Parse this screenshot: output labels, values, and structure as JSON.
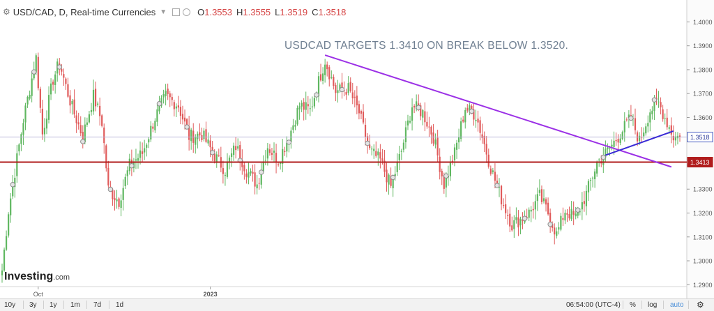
{
  "header": {
    "symbol": "USD/CAD, D, Real-time Currencies",
    "open_label": "O",
    "open_value": "1.3553",
    "high_label": "H",
    "high_value": "1.3555",
    "low_label": "L",
    "low_value": "1.3519",
    "close_label": "C",
    "close_value": "1.3518"
  },
  "annotation": "USDCAD TARGETS 1.3410 ON BREAK BELOW 1.3520.",
  "brand": "Investing",
  "brand_suffix": ".com",
  "toolbar": {
    "ranges": [
      "10y",
      "3y",
      "1y",
      "1m",
      "7d",
      "1d"
    ],
    "clock": "06:54:00 (UTC-4)",
    "percent": "%",
    "log": "log",
    "auto": "auto",
    "settings_icon": "gear-icon"
  },
  "colors": {
    "up": "#5fb760",
    "down": "#e05a5a",
    "resistance": "#9b30e6",
    "support_line": "#b01c1c",
    "uptrend": "#3a2bd6",
    "annotation": "#6f7f91"
  },
  "chart_data": {
    "type": "candlestick",
    "title": "USD/CAD, D, Real-time Currencies",
    "xlabel": "",
    "ylabel": "",
    "x_ticks": [
      "Oct",
      "2023"
    ],
    "ylim": [
      1.2895,
      1.408
    ],
    "y_ticks": [
      1.29,
      1.3,
      1.31,
      1.32,
      1.33,
      1.34,
      1.35,
      1.36,
      1.37,
      1.38,
      1.39,
      1.4
    ],
    "y_tick_labels": [
      "1.2900",
      "1.3000",
      "1.3100",
      "1.3200",
      "1.3300",
      "",
      "",
      "1.3600",
      "1.3700",
      "1.3800",
      "1.3900",
      "1.4000"
    ],
    "price_labels": [
      {
        "label": "1.3518",
        "value": 1.3518,
        "style": "current"
      },
      {
        "label": "1.3413",
        "value": 1.3413,
        "style": "support"
      }
    ],
    "horizontal_lines": [
      {
        "name": "support",
        "value": 1.3413
      },
      {
        "name": "current",
        "value": 1.3518
      }
    ],
    "trendlines": [
      {
        "name": "resistance",
        "from": {
          "bar": 152,
          "value": 1.3861
        },
        "to": {
          "bar": 315,
          "value": 1.3393
        }
      },
      {
        "name": "uptrend",
        "from": {
          "bar": 284,
          "value": 1.3442
        },
        "to": {
          "bar": 316,
          "value": 1.3543
        }
      }
    ],
    "bar_count": 320,
    "anchors": [
      [
        0,
        1.296
      ],
      [
        3,
        1.321
      ],
      [
        10,
        1.359
      ],
      [
        16,
        1.385
      ],
      [
        19,
        1.353
      ],
      [
        24,
        1.376
      ],
      [
        27,
        1.383
      ],
      [
        30,
        1.373
      ],
      [
        33,
        1.364
      ],
      [
        38,
        1.352
      ],
      [
        43,
        1.369
      ],
      [
        47,
        1.358
      ],
      [
        50,
        1.33
      ],
      [
        55,
        1.325
      ],
      [
        60,
        1.34
      ],
      [
        66,
        1.345
      ],
      [
        72,
        1.36
      ],
      [
        77,
        1.369
      ],
      [
        83,
        1.365
      ],
      [
        88,
        1.352
      ],
      [
        94,
        1.353
      ],
      [
        100,
        1.344
      ],
      [
        105,
        1.338
      ],
      [
        110,
        1.348
      ],
      [
        115,
        1.338
      ],
      [
        120,
        1.332
      ],
      [
        125,
        1.348
      ],
      [
        130,
        1.342
      ],
      [
        135,
        1.352
      ],
      [
        140,
        1.365
      ],
      [
        145,
        1.363
      ],
      [
        152,
        1.384
      ],
      [
        157,
        1.371
      ],
      [
        163,
        1.372
      ],
      [
        168,
        1.362
      ],
      [
        173,
        1.346
      ],
      [
        178,
        1.342
      ],
      [
        183,
        1.331
      ],
      [
        188,
        1.346
      ],
      [
        193,
        1.365
      ],
      [
        198,
        1.362
      ],
      [
        203,
        1.352
      ],
      [
        208,
        1.332
      ],
      [
        213,
        1.345
      ],
      [
        218,
        1.364
      ],
      [
        223,
        1.361
      ],
      [
        226,
        1.352
      ],
      [
        230,
        1.339
      ],
      [
        235,
        1.326
      ],
      [
        240,
        1.315
      ],
      [
        245,
        1.318
      ],
      [
        248,
        1.32
      ],
      [
        253,
        1.327
      ],
      [
        257,
        1.32
      ],
      [
        261,
        1.311
      ],
      [
        265,
        1.321
      ],
      [
        270,
        1.318
      ],
      [
        275,
        1.328
      ],
      [
        280,
        1.341
      ],
      [
        285,
        1.346
      ],
      [
        290,
        1.352
      ],
      [
        296,
        1.36
      ],
      [
        300,
        1.35
      ],
      [
        305,
        1.363
      ],
      [
        309,
        1.366
      ],
      [
        313,
        1.358
      ],
      [
        316,
        1.352
      ],
      [
        319,
        1.3518
      ]
    ],
    "markers": [
      5,
      15,
      27,
      38,
      51,
      61,
      74,
      87,
      99,
      112,
      122,
      135,
      148,
      160,
      172,
      184,
      196,
      209,
      221,
      233,
      246,
      258,
      271,
      283,
      296,
      307
    ]
  }
}
